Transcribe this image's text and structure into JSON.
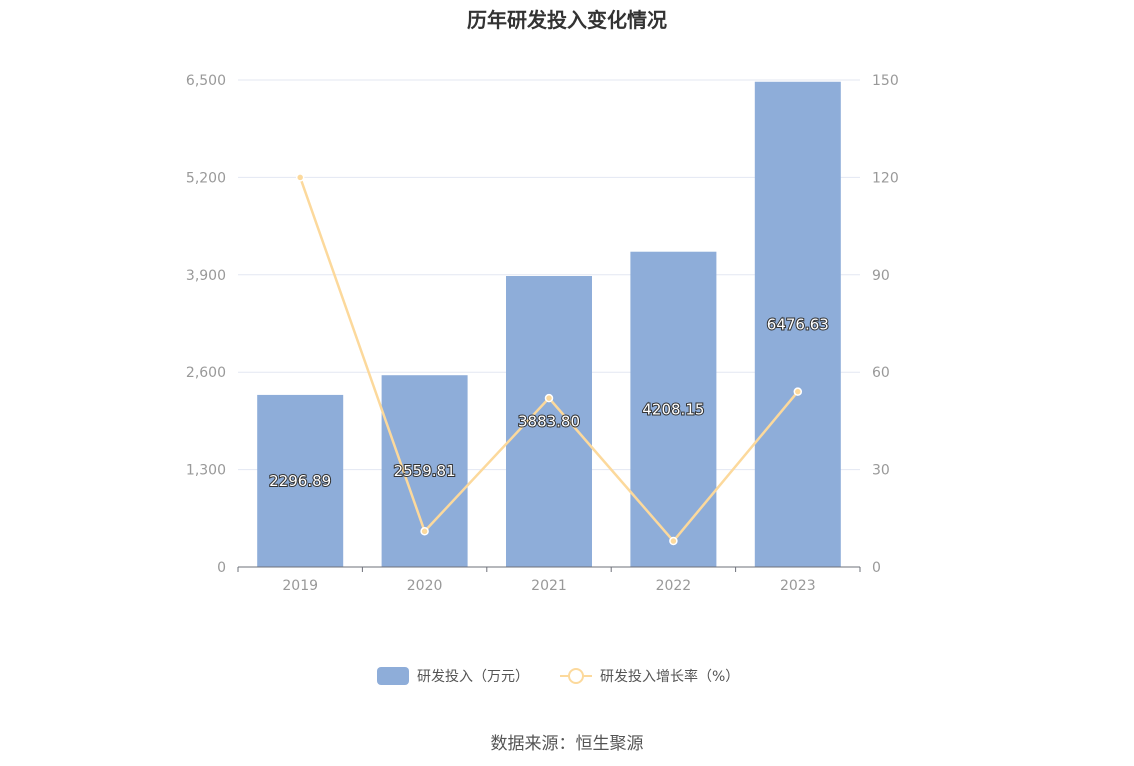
{
  "chart_data": {
    "type": "bar",
    "title": "历年研发投入变化情况",
    "categories": [
      "2019",
      "2020",
      "2021",
      "2022",
      "2023"
    ],
    "series": [
      {
        "name": "研发投入（万元）",
        "kind": "bar",
        "axis": "left",
        "values": [
          2296.89,
          2559.81,
          3883.8,
          4208.15,
          6476.63
        ],
        "labels": [
          "2296.89",
          "2559.81",
          "3883.80",
          "4208.15",
          "6476.63"
        ],
        "color": "#8eadd9"
      },
      {
        "name": "研发投入增长率（%）",
        "kind": "line",
        "axis": "right",
        "values": [
          120,
          11,
          52,
          8,
          54
        ],
        "color": "#fcd99c"
      }
    ],
    "y_left": {
      "ylim": [
        0,
        6500
      ],
      "ticks": [
        0,
        1300,
        2600,
        3900,
        5200,
        6500
      ],
      "tick_labels": [
        "0",
        "1,300",
        "2,600",
        "3,900",
        "5,200",
        "6,500"
      ]
    },
    "y_right": {
      "ylim": [
        0,
        150
      ],
      "ticks": [
        0,
        30,
        60,
        90,
        120,
        150
      ],
      "tick_labels": [
        "0",
        "30",
        "60",
        "90",
        "120",
        "150"
      ]
    },
    "grid": true,
    "legend_position": "bottom-center",
    "source": "数据来源：恒生聚源"
  }
}
